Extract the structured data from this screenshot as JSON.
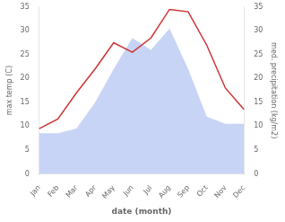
{
  "chart_data": {
    "type": "line",
    "categories": [
      "Jan",
      "Feb",
      "Mar",
      "Apr",
      "May",
      "Jun",
      "Jul",
      "Aug",
      "Sep",
      "Oct",
      "Nov",
      "Dec"
    ],
    "series": [
      {
        "type": "line",
        "color": "#cc3333",
        "values": [
          9.5,
          11.5,
          17.0,
          22.0,
          27.5,
          25.5,
          28.5,
          34.5,
          34.0,
          27.0,
          18.0,
          13.5
        ]
      },
      {
        "type": "area",
        "axis": "y2",
        "color": "#c8d4f5",
        "values": [
          8.5,
          8.5,
          9.5,
          15.0,
          22.0,
          28.5,
          26.0,
          30.5,
          22.0,
          12.0,
          10.5,
          10.5
        ]
      }
    ],
    "xlabel": "date (month)",
    "ylabel": "max temp (C)",
    "y2label": "med. precipitation (kg/m2)",
    "ylim": [
      0,
      35
    ],
    "yticks": [
      0,
      5,
      10,
      15,
      20,
      25,
      30,
      35
    ],
    "y2lim": [
      0,
      35
    ],
    "y2ticks": [
      0,
      5,
      10,
      15,
      20,
      25,
      30,
      35
    ],
    "grid": false
  }
}
